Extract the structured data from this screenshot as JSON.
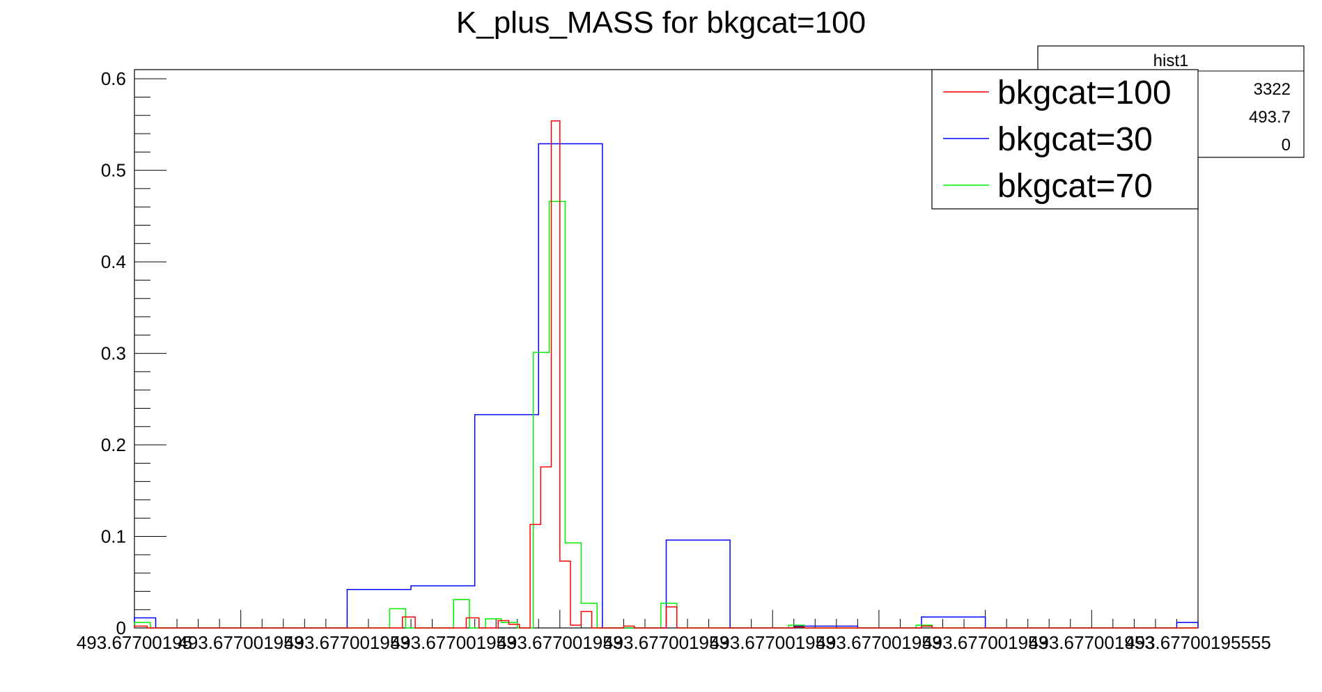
{
  "chart_data": {
    "type": "histogram",
    "title": "K_plus_MASS for bkgcat=100",
    "xlabel": "",
    "ylabel": "",
    "ylim": [
      0,
      0.61
    ],
    "y_ticks": [
      0,
      0.1,
      0.2,
      0.3,
      0.4,
      0.5,
      0.6
    ],
    "y_tick_labels": [
      "0",
      "0.1",
      "0.2",
      "0.3",
      "0.4",
      "0.5",
      "0.6"
    ],
    "x_tick_labels": [
      "493.67700195",
      "493.677001953",
      "493.677001953",
      "493.677001953",
      "493.677001953",
      "493.677001953",
      "493.677001953",
      "493.677001953",
      "493.677001953",
      "493.677001953",
      "493.67700195555"
    ],
    "x_tick_labels_note": "overlapping tick labels as rendered",
    "x_range_bins": [
      0,
      50
    ],
    "grid": false,
    "legend_position": "top-right",
    "series": [
      {
        "name": "bkgcat=100",
        "color": "#ff0000",
        "bins": [
          {
            "from": 0,
            "to": 0.6,
            "value": 0.002
          },
          {
            "from": 12.6,
            "to": 13.2,
            "value": 0.012
          },
          {
            "from": 15.6,
            "to": 16.2,
            "value": 0.011
          },
          {
            "from": 17.1,
            "to": 17.6,
            "value": 0.008
          },
          {
            "from": 17.6,
            "to": 18.1,
            "value": 0.004
          },
          {
            "from": 18.6,
            "to": 19.1,
            "value": 0.113
          },
          {
            "from": 19.1,
            "to": 19.6,
            "value": 0.176
          },
          {
            "from": 19.6,
            "to": 20.0,
            "value": 0.554
          },
          {
            "from": 20.0,
            "to": 20.5,
            "value": 0.073
          },
          {
            "from": 20.5,
            "to": 21.0,
            "value": 0.003
          },
          {
            "from": 21.0,
            "to": 21.5,
            "value": 0.018
          },
          {
            "from": 23.0,
            "to": 23.5,
            "value": 0.002
          },
          {
            "from": 25.0,
            "to": 25.5,
            "value": 0.023
          },
          {
            "from": 31.0,
            "to": 31.5,
            "value": 0.001
          },
          {
            "from": 37.0,
            "to": 37.5,
            "value": 0.002
          }
        ]
      },
      {
        "name": "bkgcat=30",
        "color": "#0000ff",
        "bins": [
          {
            "from": 0,
            "to": 1,
            "value": 0.011
          },
          {
            "from": 10,
            "to": 13,
            "value": 0.042
          },
          {
            "from": 13,
            "to": 16,
            "value": 0.046
          },
          {
            "from": 16,
            "to": 19,
            "value": 0.233
          },
          {
            "from": 19,
            "to": 22,
            "value": 0.529
          },
          {
            "from": 25,
            "to": 28,
            "value": 0.096
          },
          {
            "from": 31,
            "to": 34,
            "value": 0.002
          },
          {
            "from": 37,
            "to": 40,
            "value": 0.012
          },
          {
            "from": 49,
            "to": 50,
            "value": 0.006
          }
        ]
      },
      {
        "name": "bkgcat=70",
        "color": "#00ee00",
        "bins": [
          {
            "from": 0,
            "to": 0.75,
            "value": 0.006
          },
          {
            "from": 12,
            "to": 12.75,
            "value": 0.021
          },
          {
            "from": 15,
            "to": 15.75,
            "value": 0.031
          },
          {
            "from": 16.5,
            "to": 17.25,
            "value": 0.01
          },
          {
            "from": 17.25,
            "to": 18,
            "value": 0.006
          },
          {
            "from": 18.75,
            "to": 19.5,
            "value": 0.301
          },
          {
            "from": 19.5,
            "to": 20.25,
            "value": 0.466
          },
          {
            "from": 20.25,
            "to": 21,
            "value": 0.093
          },
          {
            "from": 21,
            "to": 21.75,
            "value": 0.027
          },
          {
            "from": 24.75,
            "to": 25.5,
            "value": 0.027
          },
          {
            "from": 30.75,
            "to": 31.5,
            "value": 0.003
          },
          {
            "from": 36.75,
            "to": 37.5,
            "value": 0.003
          }
        ]
      }
    ],
    "stats_box": {
      "title": "hist1",
      "values": [
        "3322",
        "493.7",
        "0"
      ]
    }
  }
}
